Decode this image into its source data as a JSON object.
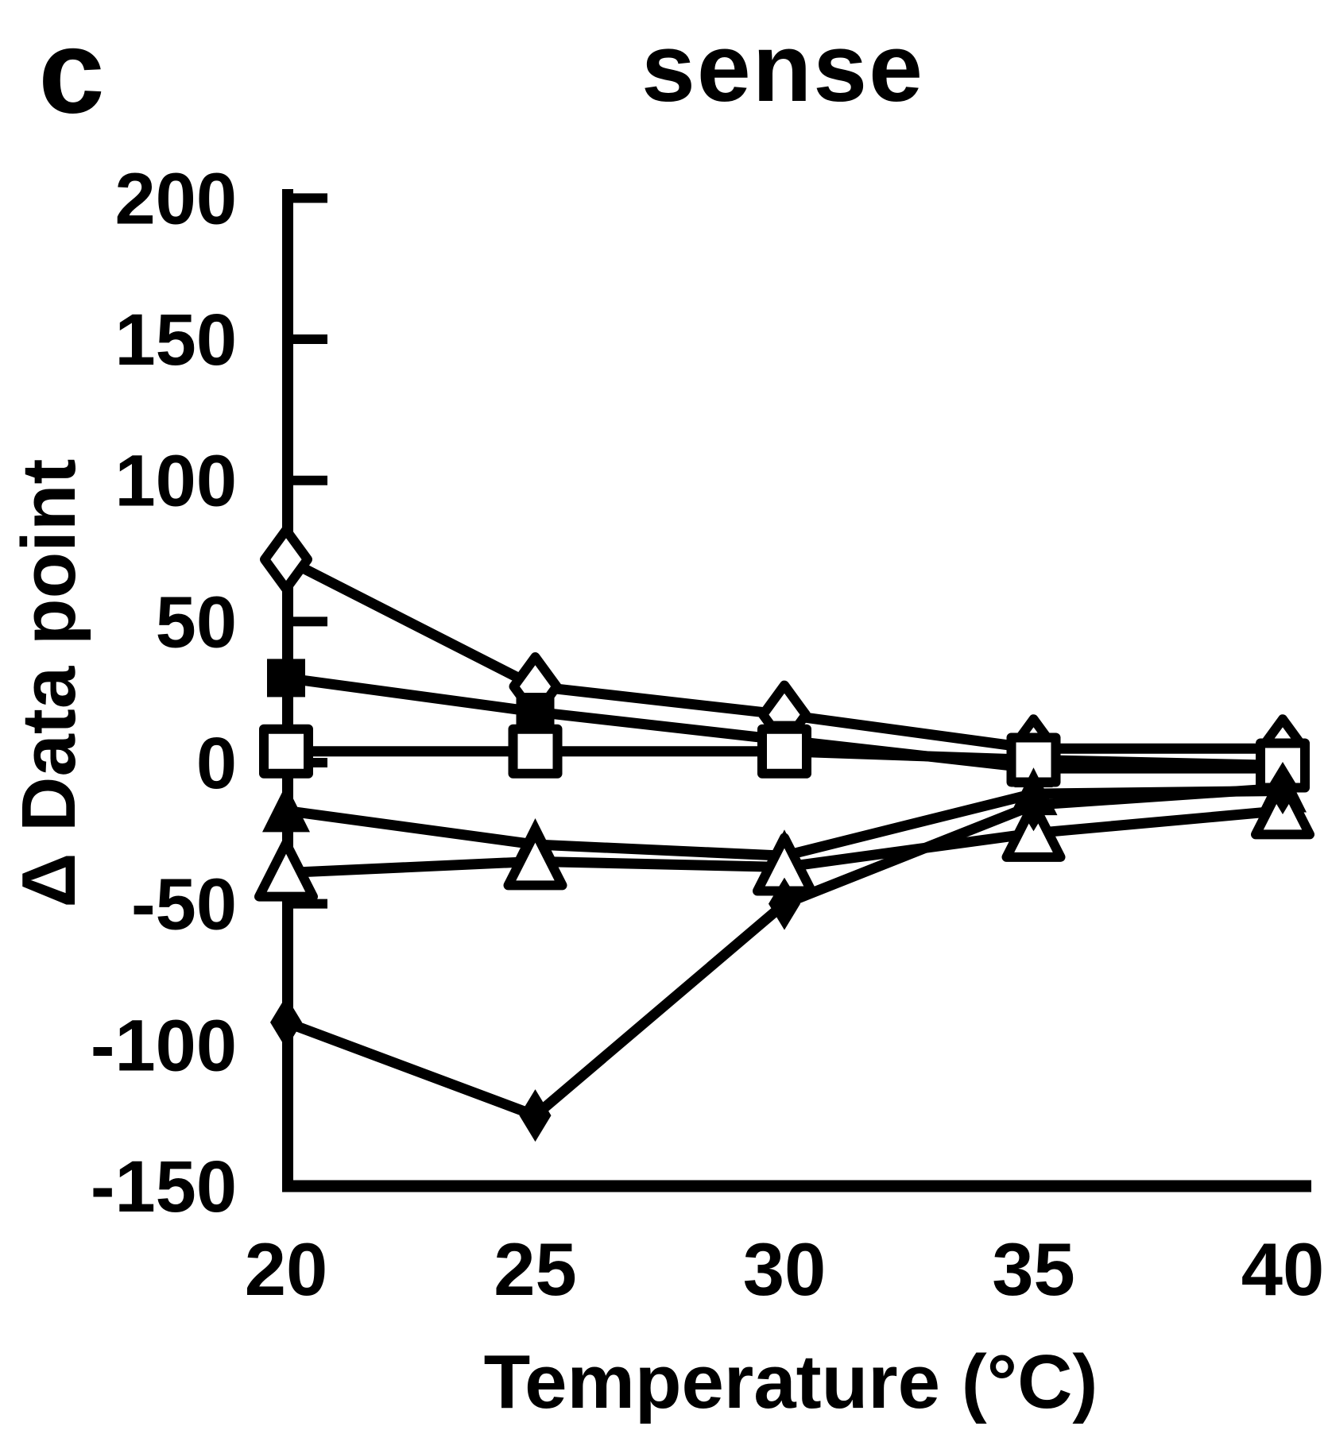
{
  "panel_label": "c",
  "title": "sense",
  "colors": {
    "ink": "#000000",
    "paper": "#ffffff"
  },
  "y_axis": {
    "title": "Δ Data point",
    "tick_labels": [
      "200",
      "150",
      "100",
      "50",
      "0",
      "-50",
      "-100",
      "-150"
    ],
    "tick_values": [
      200,
      150,
      100,
      50,
      0,
      -50,
      -100,
      -150
    ],
    "ticks_with_marks": [
      200,
      150,
      100,
      50,
      0,
      -50
    ]
  },
  "x_axis": {
    "title": "Temperature (°C)",
    "tick_labels": [
      "20",
      "25",
      "30",
      "35",
      "40"
    ],
    "tick_values": [
      20,
      25,
      30,
      35,
      40
    ]
  },
  "chart_data": {
    "type": "line",
    "title": "sense",
    "xlabel": "Temperature (°C)",
    "ylabel": "Δ Data point",
    "x": [
      20,
      25,
      30,
      35,
      40
    ],
    "xlim": [
      20,
      40
    ],
    "ylim": [
      -150,
      200
    ],
    "grid": false,
    "legend_position": "none",
    "series": [
      {
        "name": "open-diamond",
        "marker": "diamond",
        "fill": "open",
        "color": "#000000",
        "values": [
          72,
          27,
          17,
          5,
          5
        ]
      },
      {
        "name": "filled-square",
        "marker": "square",
        "fill": "solid",
        "color": "#000000",
        "values": [
          30,
          18,
          8,
          -2,
          -2
        ]
      },
      {
        "name": "open-square",
        "marker": "square",
        "fill": "open",
        "color": "#000000",
        "values": [
          4,
          4,
          4,
          1,
          -1
        ]
      },
      {
        "name": "filled-triangle",
        "marker": "triangle",
        "fill": "solid",
        "color": "#000000",
        "values": [
          -17,
          -29,
          -33,
          -11,
          -10
        ]
      },
      {
        "name": "open-triangle",
        "marker": "triangle",
        "fill": "open",
        "color": "#000000",
        "values": [
          -39,
          -35,
          -37,
          -25,
          -17
        ]
      },
      {
        "name": "filled-diamond",
        "marker": "diamond",
        "fill": "solid",
        "color": "#000000",
        "values": [
          -92,
          -125,
          -50,
          -15,
          -9
        ]
      }
    ]
  }
}
